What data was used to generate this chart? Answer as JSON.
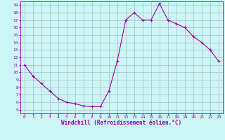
{
  "x": [
    0,
    1,
    2,
    3,
    4,
    5,
    6,
    7,
    8,
    9,
    10,
    11,
    12,
    13,
    14,
    15,
    16,
    17,
    18,
    19,
    20,
    21,
    22,
    23
  ],
  "y": [
    11.0,
    9.5,
    8.5,
    7.5,
    6.5,
    6.0,
    5.8,
    5.5,
    5.4,
    5.4,
    7.5,
    11.5,
    17.0,
    18.0,
    17.0,
    17.0,
    19.2,
    17.0,
    16.5,
    16.0,
    14.8,
    14.0,
    13.0,
    11.5
  ],
  "line_color": "#9900aa",
  "marker": "+",
  "marker_color": "#9900aa",
  "bg_color": "#ccf5f5",
  "grid_color": "#aabbcc",
  "xlabel": "Windchill (Refroidissement éolien,°C)",
  "xlabel_color": "#9900aa",
  "tick_color": "#9900aa",
  "xlim": [
    -0.5,
    23.5
  ],
  "ylim": [
    4.5,
    19.5
  ],
  "yticks": [
    5,
    6,
    7,
    8,
    9,
    10,
    11,
    12,
    13,
    14,
    15,
    16,
    17,
    18,
    19
  ],
  "xticks": [
    0,
    1,
    2,
    3,
    4,
    5,
    6,
    7,
    8,
    9,
    10,
    11,
    12,
    13,
    14,
    15,
    16,
    17,
    18,
    19,
    20,
    21,
    22,
    23
  ]
}
